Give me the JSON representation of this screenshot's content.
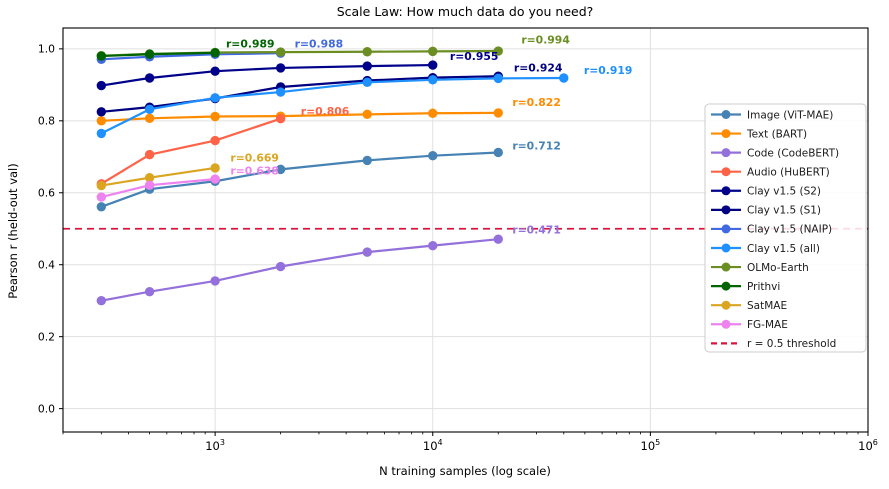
{
  "chart_data": {
    "type": "line",
    "title": "Scale Law: How much data do you need?",
    "xlabel": "N training samples (log scale)",
    "ylabel": "Pearson r (held-out val)",
    "x_scale": "log",
    "xlim": [
      200,
      1000000
    ],
    "ylim": [
      -0.065,
      1.058
    ],
    "grid": true,
    "grid_color": "#e0e0e0",
    "spine_color": "#000000",
    "x_major_ticks": [
      {
        "value": 1000,
        "base": "10",
        "exp": "3"
      },
      {
        "value": 10000,
        "base": "10",
        "exp": "4"
      },
      {
        "value": 100000,
        "base": "10",
        "exp": "5"
      },
      {
        "value": 1000000,
        "base": "10",
        "exp": "6"
      }
    ],
    "y_ticks": [
      {
        "value": 0.0,
        "label": "0.0"
      },
      {
        "value": 0.2,
        "label": "0.2"
      },
      {
        "value": 0.4,
        "label": "0.4"
      },
      {
        "value": 0.6,
        "label": "0.6"
      },
      {
        "value": 0.8,
        "label": "0.8"
      },
      {
        "value": 1.0,
        "label": "1.0"
      }
    ],
    "threshold": {
      "value": 0.5,
      "label": "r = 0.5 threshold",
      "color": "#dc143c",
      "style": "dashed"
    },
    "legend_position": "right",
    "series": [
      {
        "name": "Image (ViT-MAE)",
        "color": "#4682b4",
        "x": [
          300,
          500,
          1000,
          2000,
          5000,
          10000,
          20000
        ],
        "y": [
          0.561,
          0.61,
          0.632,
          0.665,
          0.69,
          0.703,
          0.712
        ],
        "annotation": {
          "text": "r=0.712",
          "anchor_n": 30000,
          "anchor_r": 0.731
        }
      },
      {
        "name": "Text (BART)",
        "color": "#ff8c00",
        "x": [
          300,
          500,
          1000,
          2000,
          5000,
          10000,
          20000
        ],
        "y": [
          0.8,
          0.807,
          0.812,
          0.813,
          0.818,
          0.821,
          0.822
        ],
        "annotation": {
          "text": "r=0.822",
          "anchor_n": 30000,
          "anchor_r": 0.851
        }
      },
      {
        "name": "Code (CodeBERT)",
        "color": "#9370db",
        "x": [
          300,
          500,
          1000,
          2000,
          5000,
          10000,
          20000
        ],
        "y": [
          0.3,
          0.325,
          0.355,
          0.395,
          0.435,
          0.453,
          0.471
        ],
        "annotation": {
          "text": "r=0.471",
          "anchor_n": 30000,
          "anchor_r": 0.497
        }
      },
      {
        "name": "Audio (HuBERT)",
        "color": "#ff6347",
        "x": [
          300,
          500,
          1000,
          2000
        ],
        "y": [
          0.625,
          0.706,
          0.745,
          0.806
        ],
        "annotation": {
          "text": "r=0.806",
          "anchor_n": 3200,
          "anchor_r": 0.826
        }
      },
      {
        "name": "Clay v1.5 (S2)",
        "color": "#00008b",
        "x": [
          300,
          500,
          1000,
          2000,
          5000,
          10000
        ],
        "y": [
          0.898,
          0.919,
          0.938,
          0.947,
          0.952,
          0.955
        ],
        "annotation": {
          "text": "r=0.955",
          "anchor_n": 15500,
          "anchor_r": 0.979
        }
      },
      {
        "name": "Clay v1.5 (S1)",
        "color": "#000080",
        "x": [
          300,
          500,
          1000,
          2000,
          5000,
          10000,
          20000
        ],
        "y": [
          0.825,
          0.838,
          0.862,
          0.894,
          0.912,
          0.92,
          0.924
        ],
        "annotation": {
          "text": "r=0.924",
          "anchor_n": 30500,
          "anchor_r": 0.948
        }
      },
      {
        "name": "Clay v1.5 (NAIP)",
        "color": "#4169e1",
        "x": [
          300,
          500,
          1000,
          2000
        ],
        "y": [
          0.971,
          0.978,
          0.985,
          0.988
        ],
        "annotation": {
          "text": "r=0.988",
          "anchor_n": 3000,
          "anchor_r": 1.014
        }
      },
      {
        "name": "Clay v1.5 (all)",
        "color": "#1e90ff",
        "x": [
          300,
          500,
          1000,
          2000,
          5000,
          10000,
          20000,
          40000
        ],
        "y": [
          0.765,
          0.832,
          0.864,
          0.88,
          0.907,
          0.914,
          0.918,
          0.919
        ],
        "annotation": {
          "text": "r=0.919",
          "anchor_n": 64000,
          "anchor_r": 0.94
        }
      },
      {
        "name": "OLMo-Earth",
        "color": "#6b8e23",
        "x": [
          300,
          500,
          1000,
          2000,
          5000,
          10000,
          20000
        ],
        "y": [
          0.981,
          0.986,
          0.99,
          0.991,
          0.992,
          0.993,
          0.994
        ],
        "annotation": {
          "text": "r=0.994",
          "anchor_n": 33000,
          "anchor_r": 1.025
        }
      },
      {
        "name": "Prithvi",
        "color": "#006400",
        "x": [
          300,
          500,
          1000
        ],
        "y": [
          0.98,
          0.985,
          0.989
        ],
        "annotation": {
          "text": "r=0.989",
          "anchor_n": 1450,
          "anchor_r": 1.014
        }
      },
      {
        "name": "SatMAE",
        "color": "#daa520",
        "x": [
          300,
          500,
          1000
        ],
        "y": [
          0.62,
          0.642,
          0.669
        ],
        "annotation": {
          "text": "r=0.669",
          "anchor_n": 1520,
          "anchor_r": 0.697
        }
      },
      {
        "name": "FG-MAE",
        "color": "#ee82ee",
        "x": [
          300,
          500,
          1000
        ],
        "y": [
          0.588,
          0.621,
          0.638
        ],
        "annotation": {
          "text": "r=0.638",
          "anchor_n": 1520,
          "anchor_r": 0.661
        }
      }
    ]
  }
}
